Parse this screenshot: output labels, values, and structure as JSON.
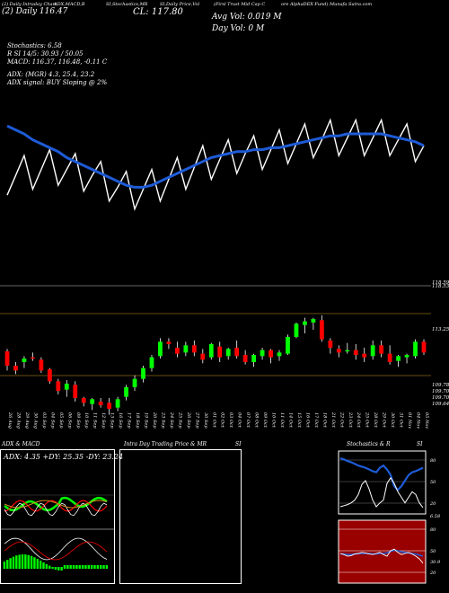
{
  "header": {
    "h1": "(2) Daily Intraday Chart",
    "h2": "ADX,MACD,B",
    "h3": "SI,Stochastics,MR",
    "h4": "SI,Daily Price,Vol",
    "h5": "(Firsl Trust Mid Cap C",
    "h6": "ore AlphaDEX Fund) Munafa Sutra.com",
    "ticker_line": "(2) Daily   116.47",
    "close_line": "CL: 117.80",
    "avg_vol": "Avg Vol: 0.019 M",
    "day_vol": "Day Vol: 0   M"
  },
  "indicators": {
    "stochastics": "Stochastics: 6.58",
    "rsi": "R        SI 14/5: 30.93 / 50.05",
    "macd": "MACD: 116.37,  116.48,  -0.11 C",
    "adx": "ADX:                     (MGR) 4.3,  25.4,  23.2",
    "adx_signal": "ADX   signal:                         BUY Sloping @ 2%"
  },
  "price_axis": {
    "labels": [
      "118.59",
      "118.53",
      "113.25",
      "109.78",
      "109.70",
      "109.70",
      "109.64"
    ]
  },
  "dates": [
    "26 Aug",
    "28 Aug",
    "29 Aug",
    "30 Aug",
    "03 Sep",
    "04 Sep",
    "05 Sep",
    "06 Sep",
    "09 Sep",
    "10 Sep",
    "11 Sep",
    "12 Sep",
    "13 Sep",
    "16 Sep",
    "17 Sep",
    "18 Sep",
    "19 Sep",
    "20 Sep",
    "23 Sep",
    "24 Sep",
    "25 Sep",
    "26 Sep",
    "27 Sep",
    "30 Sep",
    "01 Oct",
    "02 Oct",
    "03 Oct",
    "04 Oct",
    "07 Oct",
    "08 Oct",
    "09 Oct",
    "10 Oct",
    "11 Oct",
    "14 Oct",
    "15 Oct",
    "16 Oct",
    "17 Oct",
    "18 Oct",
    "21 Oct",
    "22 Oct",
    "23 Oct",
    "24 Oct",
    "25 Oct",
    "28 Oct",
    "29 Oct",
    "30 Oct",
    "31 Oct",
    "01 Nov",
    "04 Nov",
    "05 Nov"
  ],
  "panels": {
    "adx_title": "ADX  & MACD",
    "adx_values": "ADX: 4.35  +DY: 25.35  -DY: 23.24",
    "intra_title_a": "Intra  Day Trading Price  & MR",
    "intra_title_b": "SI",
    "stoch_title_a": "Stochastics & R",
    "stoch_title_b": "SI",
    "stoch_ticks": [
      "80",
      "50",
      "20"
    ],
    "rsi_ticks": [
      "80",
      "50",
      "20"
    ],
    "stoch_last": "6.58",
    "rsi_last": "30.9"
  },
  "colors": {
    "up": "#00ff00",
    "down": "#ff0000",
    "ma": "#1e5bd6",
    "bar": "#8b0000",
    "rsi_bg": "#990000",
    "grid": "#8b6914"
  },
  "chart_data": {
    "type": "candlestick",
    "price_ylim": [
      109.0,
      119.5
    ],
    "ohlc": [
      [
        113.8,
        114.0,
        112.2,
        112.6
      ],
      [
        112.6,
        112.9,
        111.9,
        112.2
      ],
      [
        112.9,
        113.4,
        112.4,
        113.2
      ],
      [
        113.3,
        113.7,
        113.0,
        113.2
      ],
      [
        113.1,
        113.3,
        112.0,
        112.2
      ],
      [
        112.3,
        112.4,
        111.1,
        111.3
      ],
      [
        111.3,
        111.5,
        110.2,
        110.5
      ],
      [
        110.6,
        111.4,
        110.0,
        111.1
      ],
      [
        111.0,
        111.3,
        109.6,
        109.9
      ],
      [
        109.9,
        110.0,
        109.2,
        109.5
      ],
      [
        109.4,
        109.9,
        108.9,
        109.8
      ],
      [
        109.6,
        109.9,
        109.1,
        109.3
      ],
      [
        109.5,
        109.9,
        108.5,
        109.0
      ],
      [
        109.1,
        110.0,
        108.8,
        109.8
      ],
      [
        110.0,
        111.0,
        109.7,
        110.8
      ],
      [
        110.8,
        111.8,
        110.5,
        111.5
      ],
      [
        111.5,
        112.6,
        111.2,
        112.4
      ],
      [
        112.4,
        113.5,
        112.1,
        113.3
      ],
      [
        113.4,
        114.9,
        113.2,
        114.6
      ],
      [
        114.6,
        114.9,
        114.0,
        114.4
      ],
      [
        114.1,
        114.6,
        113.3,
        113.6
      ],
      [
        113.7,
        114.6,
        113.4,
        114.3
      ],
      [
        114.3,
        114.7,
        113.4,
        113.7
      ],
      [
        113.6,
        114.0,
        112.8,
        113.1
      ],
      [
        113.3,
        114.5,
        113.1,
        114.4
      ],
      [
        114.2,
        114.6,
        112.9,
        113.3
      ],
      [
        113.4,
        114.1,
        113.1,
        114.0
      ],
      [
        114.1,
        114.7,
        113.2,
        113.4
      ],
      [
        113.5,
        113.9,
        112.7,
        112.9
      ],
      [
        112.9,
        113.6,
        112.5,
        113.5
      ],
      [
        113.4,
        114.1,
        113.1,
        113.9
      ],
      [
        113.9,
        114.0,
        112.8,
        113.3
      ],
      [
        113.4,
        113.9,
        113.0,
        113.7
      ],
      [
        113.6,
        115.2,
        113.5,
        115.0
      ],
      [
        115.0,
        116.2,
        114.9,
        116.1
      ],
      [
        116.0,
        116.6,
        115.3,
        116.3
      ],
      [
        116.2,
        116.6,
        115.6,
        116.5
      ],
      [
        116.4,
        116.8,
        114.6,
        114.8
      ],
      [
        114.7,
        114.9,
        113.6,
        114.1
      ],
      [
        114.0,
        114.3,
        113.3,
        113.7
      ],
      [
        113.8,
        114.5,
        113.6,
        113.9
      ],
      [
        113.9,
        114.4,
        113.1,
        113.5
      ],
      [
        113.6,
        114.1,
        112.9,
        113.3
      ],
      [
        113.4,
        114.7,
        113.1,
        114.3
      ],
      [
        114.3,
        114.7,
        113.3,
        113.6
      ],
      [
        113.6,
        114.3,
        112.7,
        112.9
      ],
      [
        113.0,
        113.5,
        112.5,
        113.4
      ],
      [
        113.3,
        113.6,
        112.8,
        113.5
      ],
      [
        113.4,
        114.8,
        113.2,
        114.6
      ],
      [
        114.6,
        114.8,
        113.5,
        113.7
      ]
    ],
    "sma": [
      112.3,
      112.4,
      112.5,
      112.6,
      112.7,
      112.8,
      112.8,
      112.7,
      112.6,
      112.5,
      112.4,
      112.2,
      112.0,
      111.8,
      111.7,
      111.6,
      111.7,
      111.8,
      112.0,
      112.2,
      112.4,
      112.6,
      112.8,
      113.0,
      113.1,
      113.2,
      113.3,
      113.4,
      113.5,
      113.5,
      113.6,
      113.7,
      113.8,
      113.9,
      114.0,
      114.1,
      114.2,
      114.2,
      114.3,
      114.3,
      114.3,
      114.3,
      114.3,
      114.3,
      114.3,
      114.3,
      114.2,
      114.1,
      114.0,
      113.9
    ],
    "ma_line": [
      114.9,
      114.7,
      114.5,
      114.2,
      114.0,
      113.8,
      113.6,
      113.3,
      113.1,
      112.9,
      112.7,
      112.5,
      112.3,
      112.1,
      111.9,
      111.8,
      111.8,
      111.9,
      112.1,
      112.3,
      112.5,
      112.7,
      112.9,
      113.1,
      113.3,
      113.4,
      113.5,
      113.6,
      113.6,
      113.7,
      113.7,
      113.8,
      113.8,
      113.9,
      114.0,
      114.1,
      114.2,
      114.3,
      114.4,
      114.4,
      114.5,
      114.5,
      114.5,
      114.5,
      114.5,
      114.4,
      114.3,
      114.2,
      114.1,
      113.9
    ]
  }
}
